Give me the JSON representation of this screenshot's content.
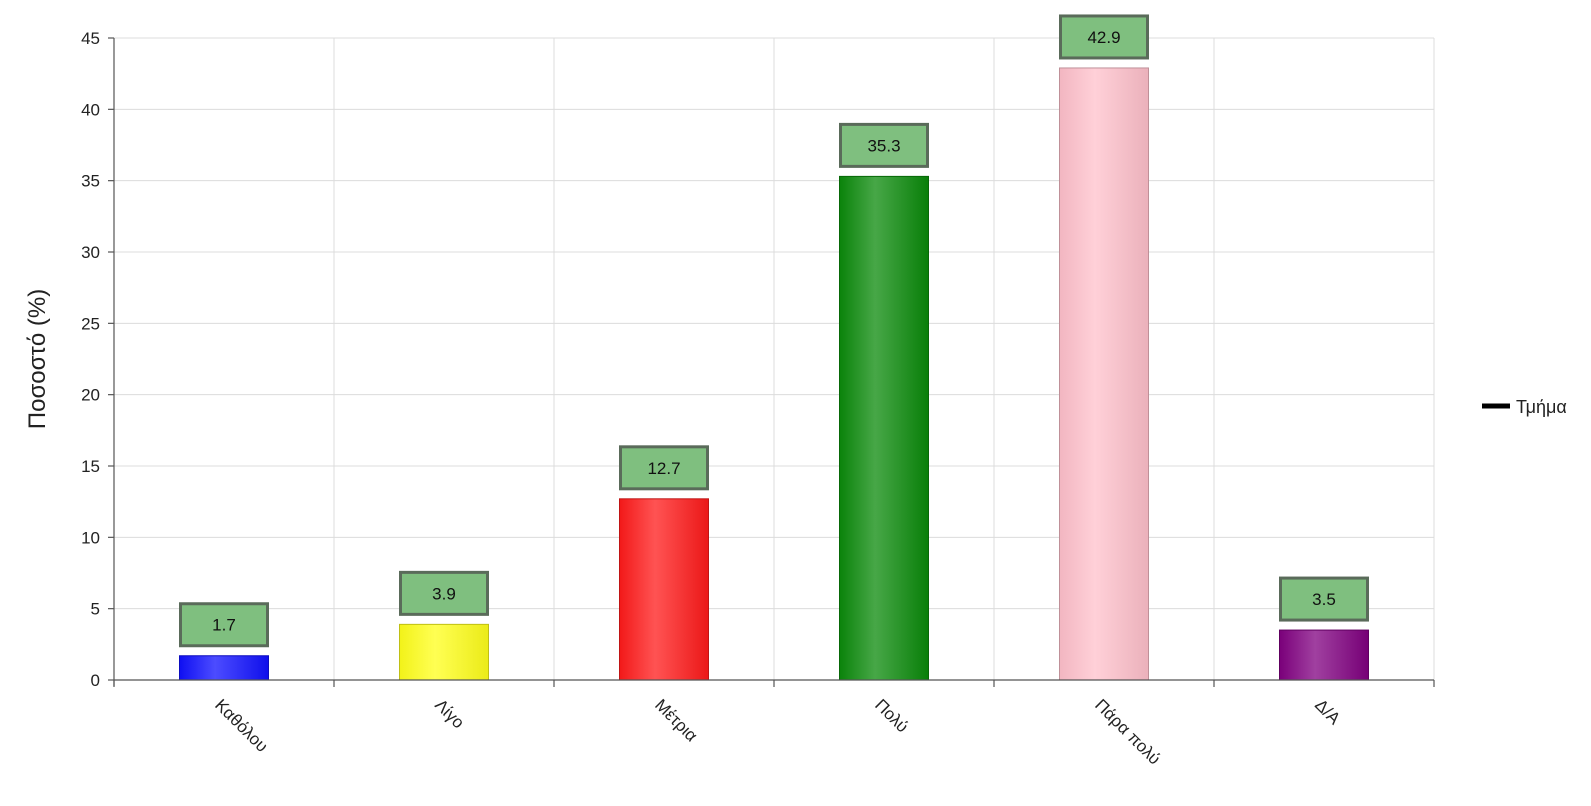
{
  "chart_data": {
    "type": "bar",
    "title": "",
    "xlabel": "",
    "ylabel": "Ποσοστό (%)",
    "ylim": [
      0,
      45
    ],
    "yticks": [
      0,
      5,
      10,
      15,
      20,
      25,
      30,
      35,
      40,
      45
    ],
    "grid": true,
    "legend_position": "right",
    "categories": [
      "Καθόλου",
      "Λίγο",
      "Μέτρια",
      "Πολύ",
      "Πάρα πολύ",
      "Δ/Α"
    ],
    "series": [
      {
        "name": "Τμήμα",
        "values": [
          1.7,
          3.9,
          12.7,
          35.3,
          42.9,
          3.5
        ],
        "data_labels": [
          "1.7",
          "3.9",
          "12.7",
          "35.3",
          "42.9",
          "3.5"
        ],
        "colors": [
          "#1010ff",
          "#ffff1a",
          "#ff1a1a",
          "#0a8a0a",
          "#ffc0cb",
          "#800080"
        ]
      }
    ],
    "data_label_style": {
      "fill": "#7fbf7f",
      "stroke": "#5a6b5a"
    }
  }
}
